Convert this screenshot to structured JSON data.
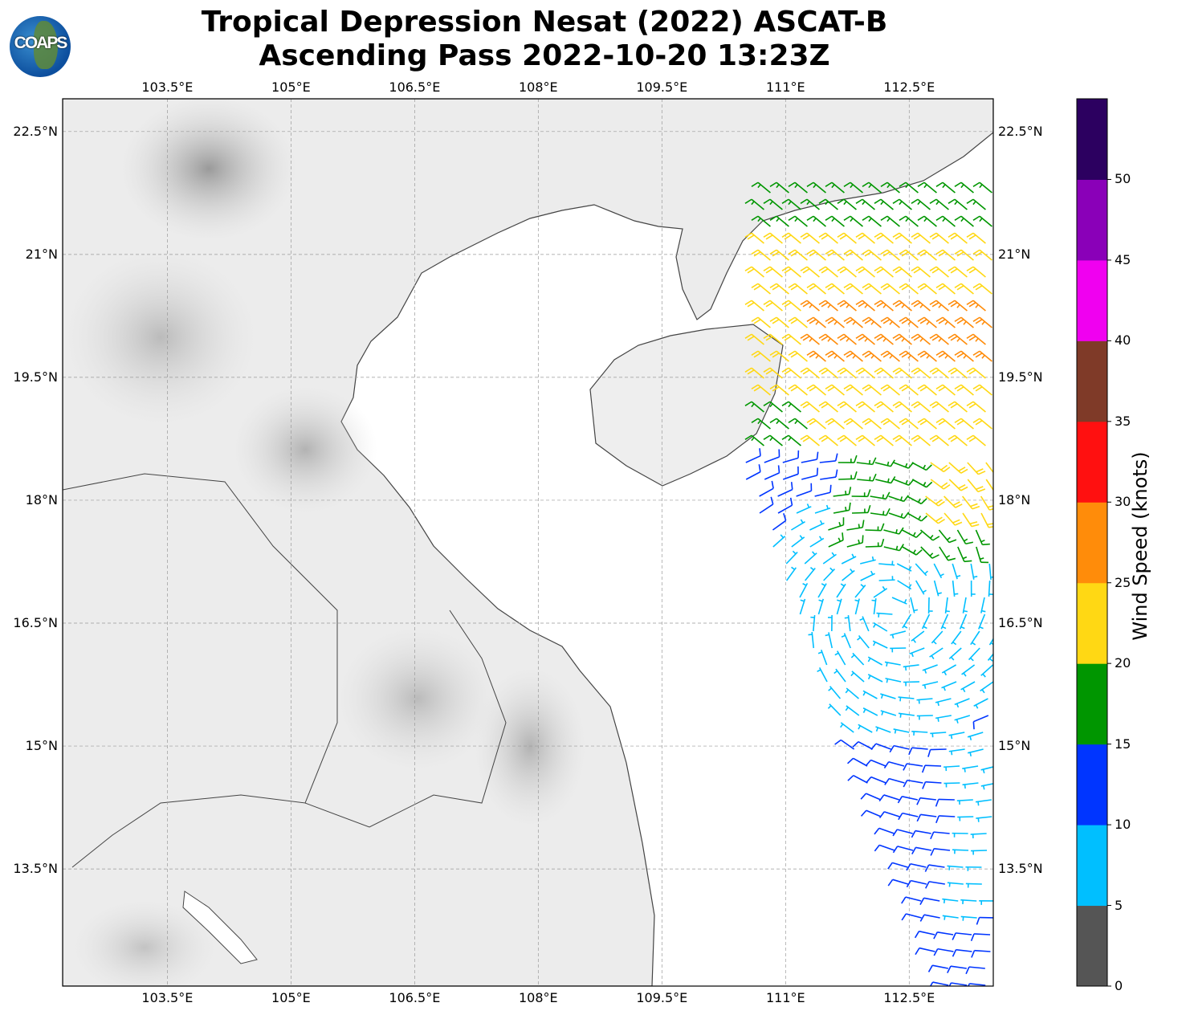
{
  "title": {
    "line1": "Tropical Depression Nesat (2022) ASCAT-B",
    "line2": "Ascending Pass 2022-10-20 13:23Z"
  },
  "logo_text": "COAPS",
  "map": {
    "lon_range": [
      102.23,
      113.52
    ],
    "lat_range": [
      12.07,
      22.9
    ],
    "lon_ticks": [
      "103.5°E",
      "105°E",
      "106.5°E",
      "108°E",
      "109.5°E",
      "111°E",
      "112.5°E"
    ],
    "lon_values": [
      103.5,
      105,
      106.5,
      108,
      109.5,
      111,
      112.5
    ],
    "lat_ticks": [
      "22.5°N",
      "21°N",
      "19.5°N",
      "18°N",
      "16.5°N",
      "15°N",
      "13.5°N"
    ],
    "lat_values": [
      22.5,
      21,
      19.5,
      18,
      16.5,
      15,
      13.5
    ],
    "gridlines": true,
    "land_color": "#e9e9e9",
    "coast_color": "#444444"
  },
  "colorbar": {
    "label": "Wind Speed (knots)",
    "ticks": [
      "0",
      "5",
      "10",
      "15",
      "20",
      "25",
      "30",
      "35",
      "40",
      "45",
      "50"
    ],
    "range": [
      0,
      55
    ],
    "colors": [
      "#555555",
      "#00bfff",
      "#0035ff",
      "#009600",
      "#ffd814",
      "#ff8c0a",
      "#ff1010",
      "#7f3a28",
      "#f000f0",
      "#8a00b8",
      "#2c0060"
    ]
  }
}
